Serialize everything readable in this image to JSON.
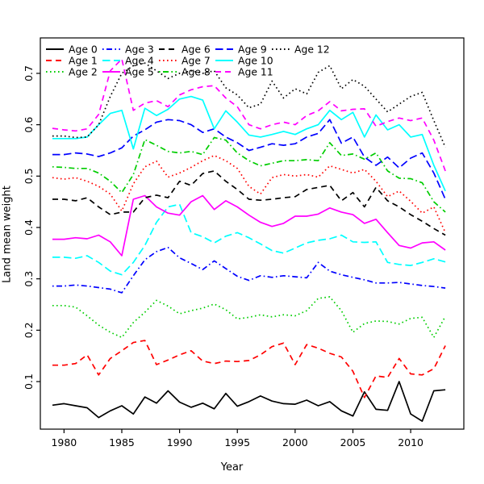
{
  "chart_data": {
    "type": "line",
    "title": "",
    "xlabel": "Year",
    "ylabel": "Land mean weight",
    "grid": false,
    "legend_position": "top-left-inside",
    "legend_columns": 5,
    "xlim": [
      1977.95,
      2014.6
    ],
    "ylim": [
      0.0074,
      0.769
    ],
    "x_ticks": [
      1980,
      1985,
      1990,
      1995,
      2000,
      2005,
      2010
    ],
    "x_tick_labels": [
      "1980",
      "1985",
      "1990",
      "1995",
      "2000",
      "2005",
      "2010"
    ],
    "y_ticks": [
      0.1,
      0.2,
      0.3,
      0.4,
      0.5,
      0.6,
      0.7
    ],
    "y_tick_labels": [
      "0.1",
      "0.2",
      "0.3",
      "0.4",
      "0.5",
      "0.6",
      "0.7"
    ],
    "x": [
      1979,
      1980,
      1981,
      1982,
      1983,
      1984,
      1985,
      1986,
      1987,
      1988,
      1989,
      1990,
      1991,
      1992,
      1993,
      1994,
      1995,
      1996,
      1997,
      1998,
      1999,
      2000,
      2001,
      2002,
      2003,
      2004,
      2005,
      2006,
      2007,
      2008,
      2009,
      2010,
      2011,
      2012,
      2013
    ],
    "series": [
      {
        "name": "Age 0",
        "color": "#000000",
        "line_style": "solid",
        "values": [
          0.054,
          0.057,
          0.053,
          0.049,
          0.03,
          0.043,
          0.053,
          0.037,
          0.07,
          0.058,
          0.082,
          0.06,
          0.05,
          0.058,
          0.047,
          0.077,
          0.052,
          0.061,
          0.072,
          0.062,
          0.057,
          0.056,
          0.064,
          0.053,
          0.061,
          0.043,
          0.033,
          0.08,
          0.046,
          0.044,
          0.1,
          0.037,
          0.023,
          0.082,
          0.084
        ]
      },
      {
        "name": "Age 1",
        "color": "#FF0000",
        "line_style": "dashed",
        "values": [
          0.132,
          0.132,
          0.135,
          0.152,
          0.113,
          0.145,
          0.16,
          0.176,
          0.18,
          0.133,
          0.142,
          0.152,
          0.16,
          0.14,
          0.135,
          0.14,
          0.139,
          0.141,
          0.152,
          0.168,
          0.175,
          0.133,
          0.172,
          0.165,
          0.155,
          0.148,
          0.12,
          0.069,
          0.111,
          0.108,
          0.145,
          0.115,
          0.113,
          0.125,
          0.17
        ]
      },
      {
        "name": "Age 2",
        "color": "#00CD00",
        "line_style": "dotted",
        "values": [
          0.248,
          0.248,
          0.245,
          0.228,
          0.21,
          0.196,
          0.186,
          0.215,
          0.235,
          0.258,
          0.247,
          0.232,
          0.238,
          0.243,
          0.251,
          0.24,
          0.222,
          0.225,
          0.23,
          0.226,
          0.23,
          0.228,
          0.238,
          0.262,
          0.265,
          0.238,
          0.196,
          0.213,
          0.218,
          0.217,
          0.212,
          0.223,
          0.225,
          0.186,
          0.227
        ]
      },
      {
        "name": "Age 3",
        "color": "#0000FF",
        "line_style": "dash-dot",
        "values": [
          0.286,
          0.286,
          0.288,
          0.286,
          0.283,
          0.28,
          0.273,
          0.306,
          0.337,
          0.353,
          0.361,
          0.341,
          0.33,
          0.318,
          0.335,
          0.32,
          0.305,
          0.297,
          0.306,
          0.303,
          0.306,
          0.304,
          0.302,
          0.332,
          0.315,
          0.308,
          0.303,
          0.298,
          0.292,
          0.292,
          0.293,
          0.29,
          0.287,
          0.285,
          0.282
        ]
      },
      {
        "name": "Age 4",
        "color": "#00FFFF",
        "line_style": "long-dash",
        "values": [
          0.342,
          0.342,
          0.34,
          0.345,
          0.332,
          0.315,
          0.308,
          0.332,
          0.365,
          0.41,
          0.44,
          0.445,
          0.39,
          0.382,
          0.37,
          0.383,
          0.39,
          0.38,
          0.368,
          0.355,
          0.35,
          0.36,
          0.37,
          0.375,
          0.378,
          0.385,
          0.372,
          0.371,
          0.372,
          0.332,
          0.328,
          0.326,
          0.332,
          0.339,
          0.333
        ]
      },
      {
        "name": "Age 5",
        "color": "#FF00FF",
        "line_style": "solid",
        "values": [
          0.377,
          0.377,
          0.38,
          0.378,
          0.385,
          0.372,
          0.345,
          0.455,
          0.462,
          0.44,
          0.428,
          0.424,
          0.45,
          0.462,
          0.435,
          0.452,
          0.44,
          0.424,
          0.41,
          0.402,
          0.408,
          0.422,
          0.422,
          0.426,
          0.438,
          0.43,
          0.425,
          0.408,
          0.416,
          0.39,
          0.365,
          0.36,
          0.37,
          0.372,
          0.356
        ]
      },
      {
        "name": "Age 6",
        "color": "#000000",
        "line_style": "dashed",
        "values": [
          0.455,
          0.455,
          0.452,
          0.458,
          0.44,
          0.425,
          0.43,
          0.43,
          0.458,
          0.463,
          0.458,
          0.49,
          0.482,
          0.505,
          0.51,
          0.49,
          0.474,
          0.455,
          0.453,
          0.455,
          0.458,
          0.46,
          0.474,
          0.478,
          0.482,
          0.452,
          0.468,
          0.44,
          0.478,
          0.452,
          0.44,
          0.425,
          0.412,
          0.398,
          0.385
        ]
      },
      {
        "name": "Age 7",
        "color": "#FF0000",
        "line_style": "dotted",
        "values": [
          0.497,
          0.494,
          0.497,
          0.49,
          0.48,
          0.465,
          0.432,
          0.485,
          0.518,
          0.529,
          0.498,
          0.506,
          0.517,
          0.53,
          0.54,
          0.53,
          0.515,
          0.48,
          0.465,
          0.497,
          0.503,
          0.5,
          0.503,
          0.498,
          0.52,
          0.513,
          0.506,
          0.513,
          0.49,
          0.46,
          0.471,
          0.451,
          0.428,
          0.44,
          0.39
        ]
      },
      {
        "name": "Age 8",
        "color": "#00CD00",
        "line_style": "dash-dot",
        "values": [
          0.518,
          0.517,
          0.515,
          0.515,
          0.506,
          0.49,
          0.468,
          0.503,
          0.571,
          0.56,
          0.548,
          0.545,
          0.548,
          0.542,
          0.575,
          0.57,
          0.545,
          0.53,
          0.52,
          0.525,
          0.53,
          0.53,
          0.532,
          0.53,
          0.565,
          0.54,
          0.543,
          0.533,
          0.545,
          0.51,
          0.496,
          0.495,
          0.487,
          0.45,
          0.43
        ]
      },
      {
        "name": "Age 9",
        "color": "#0000FF",
        "line_style": "long-dash",
        "values": [
          0.542,
          0.542,
          0.545,
          0.543,
          0.538,
          0.545,
          0.555,
          0.578,
          0.59,
          0.605,
          0.61,
          0.608,
          0.6,
          0.585,
          0.592,
          0.576,
          0.565,
          0.55,
          0.556,
          0.563,
          0.56,
          0.563,
          0.576,
          0.583,
          0.61,
          0.564,
          0.576,
          0.537,
          0.521,
          0.537,
          0.516,
          0.535,
          0.545,
          0.506,
          0.455
        ]
      },
      {
        "name": "Age 10",
        "color": "#00FFFF",
        "line_style": "solid",
        "values": [
          0.573,
          0.573,
          0.573,
          0.576,
          0.6,
          0.622,
          0.628,
          0.553,
          0.632,
          0.618,
          0.63,
          0.65,
          0.655,
          0.648,
          0.592,
          0.627,
          0.605,
          0.58,
          0.576,
          0.581,
          0.587,
          0.581,
          0.592,
          0.6,
          0.628,
          0.61,
          0.624,
          0.576,
          0.619,
          0.59,
          0.6,
          0.576,
          0.581,
          0.521,
          0.471
        ]
      },
      {
        "name": "Age 11",
        "color": "#FF00FF",
        "line_style": "dashed",
        "values": [
          0.593,
          0.59,
          0.588,
          0.592,
          0.62,
          0.705,
          0.728,
          0.628,
          0.642,
          0.647,
          0.635,
          0.658,
          0.668,
          0.674,
          0.676,
          0.652,
          0.635,
          0.6,
          0.592,
          0.6,
          0.605,
          0.6,
          0.618,
          0.627,
          0.645,
          0.627,
          0.63,
          0.631,
          0.597,
          0.606,
          0.613,
          0.608,
          0.613,
          0.57,
          0.51
        ]
      },
      {
        "name": "Age 12",
        "color": "#000000",
        "line_style": "dotted",
        "values": [
          0.578,
          0.578,
          0.575,
          0.576,
          0.6,
          0.655,
          0.7,
          0.715,
          0.72,
          0.705,
          0.69,
          0.7,
          0.705,
          0.7,
          0.705,
          0.672,
          0.658,
          0.633,
          0.64,
          0.685,
          0.652,
          0.67,
          0.66,
          0.702,
          0.715,
          0.67,
          0.688,
          0.675,
          0.65,
          0.625,
          0.64,
          0.655,
          0.663,
          0.608,
          0.556
        ]
      }
    ]
  }
}
